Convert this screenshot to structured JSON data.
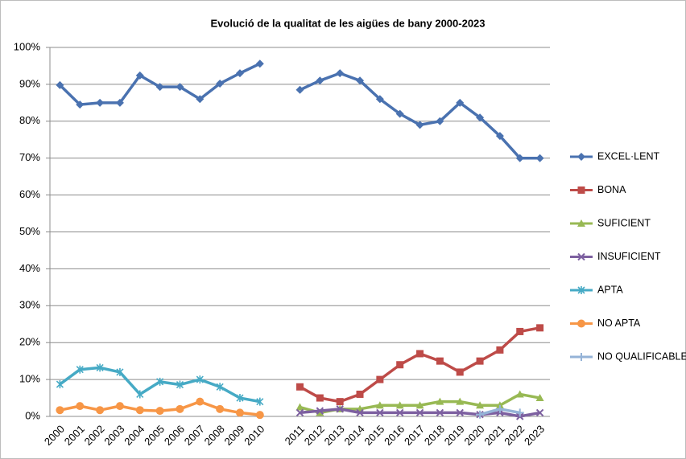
{
  "chart_data": {
    "type": "line",
    "title": "Evolució de la qualitat de les aigües de bany 2000-2023",
    "categories": [
      "2000",
      "2001",
      "2002",
      "2003",
      "2004",
      "2005",
      "2006",
      "2007",
      "2008",
      "2009",
      "2010",
      null,
      "2011",
      "2012",
      "2013",
      "2014",
      "2015",
      "2016",
      "2017",
      "2018",
      "2019",
      "2020",
      "2021",
      "2022",
      "2023"
    ],
    "series": [
      {
        "name": "EXCEL·LENT",
        "color": "#4a72b0",
        "marker": "diamond",
        "values": [
          89.8,
          84.5,
          85,
          85,
          92.4,
          89.3,
          89.3,
          86,
          90.2,
          93,
          95.6,
          null,
          88.5,
          91,
          93,
          91,
          86,
          82,
          79,
          80,
          85,
          81,
          76,
          70,
          70
        ]
      },
      {
        "name": "BONA",
        "color": "#be4b48",
        "marker": "square",
        "values": [
          null,
          null,
          null,
          null,
          null,
          null,
          null,
          null,
          null,
          null,
          null,
          null,
          8,
          5,
          4,
          6,
          10,
          14,
          17,
          15,
          12,
          15,
          18,
          23,
          24
        ]
      },
      {
        "name": "SUFICIENT",
        "color": "#98b954",
        "marker": "triangle",
        "values": [
          null,
          null,
          null,
          null,
          null,
          null,
          null,
          null,
          null,
          null,
          null,
          null,
          2.5,
          1,
          2,
          2,
          3,
          3,
          3,
          4,
          4,
          3,
          3,
          6,
          5
        ]
      },
      {
        "name": "INSUFICIENT",
        "color": "#7d60a0",
        "marker": "x",
        "values": [
          null,
          null,
          null,
          null,
          null,
          null,
          null,
          null,
          null,
          null,
          null,
          null,
          1,
          1.5,
          2,
          1,
          1,
          1,
          1,
          1,
          1,
          0.5,
          1,
          0,
          1
        ]
      },
      {
        "name": "APTA",
        "color": "#46aac5",
        "marker": "star",
        "values": [
          8.7,
          12.7,
          13.2,
          12,
          6,
          9.4,
          8.6,
          10,
          8,
          5,
          4,
          null,
          null,
          null,
          null,
          null,
          null,
          null,
          null,
          null,
          null,
          null,
          null,
          null,
          null
        ]
      },
      {
        "name": "NO APTA",
        "color": "#f79646",
        "marker": "circle",
        "values": [
          1.7,
          2.8,
          1.7,
          2.8,
          1.7,
          1.5,
          2,
          4,
          2,
          1,
          0.4,
          null,
          null,
          null,
          null,
          null,
          null,
          null,
          null,
          null,
          null,
          null,
          null,
          null,
          null
        ]
      },
      {
        "name": "NO QUALIFICABLE",
        "color": "#95b3d7",
        "marker": "plus",
        "values": [
          null,
          null,
          null,
          null,
          null,
          null,
          null,
          null,
          null,
          null,
          null,
          null,
          null,
          null,
          null,
          null,
          null,
          null,
          null,
          null,
          null,
          0.5,
          2,
          1,
          null
        ]
      }
    ],
    "ylim": [
      0,
      100
    ],
    "yticks": [
      {
        "value": 0,
        "label": "0%"
      },
      {
        "value": 10,
        "label": "10%"
      },
      {
        "value": 20,
        "label": "20%"
      },
      {
        "value": 30,
        "label": "30%"
      },
      {
        "value": 40,
        "label": "40%"
      },
      {
        "value": 50,
        "label": "50%"
      },
      {
        "value": 60,
        "label": "60%"
      },
      {
        "value": 70,
        "label": "70%"
      },
      {
        "value": 80,
        "label": "80%"
      },
      {
        "value": 90,
        "label": "90%"
      },
      {
        "value": 100,
        "label": "100%"
      }
    ],
    "grid": true,
    "legend": "right"
  }
}
